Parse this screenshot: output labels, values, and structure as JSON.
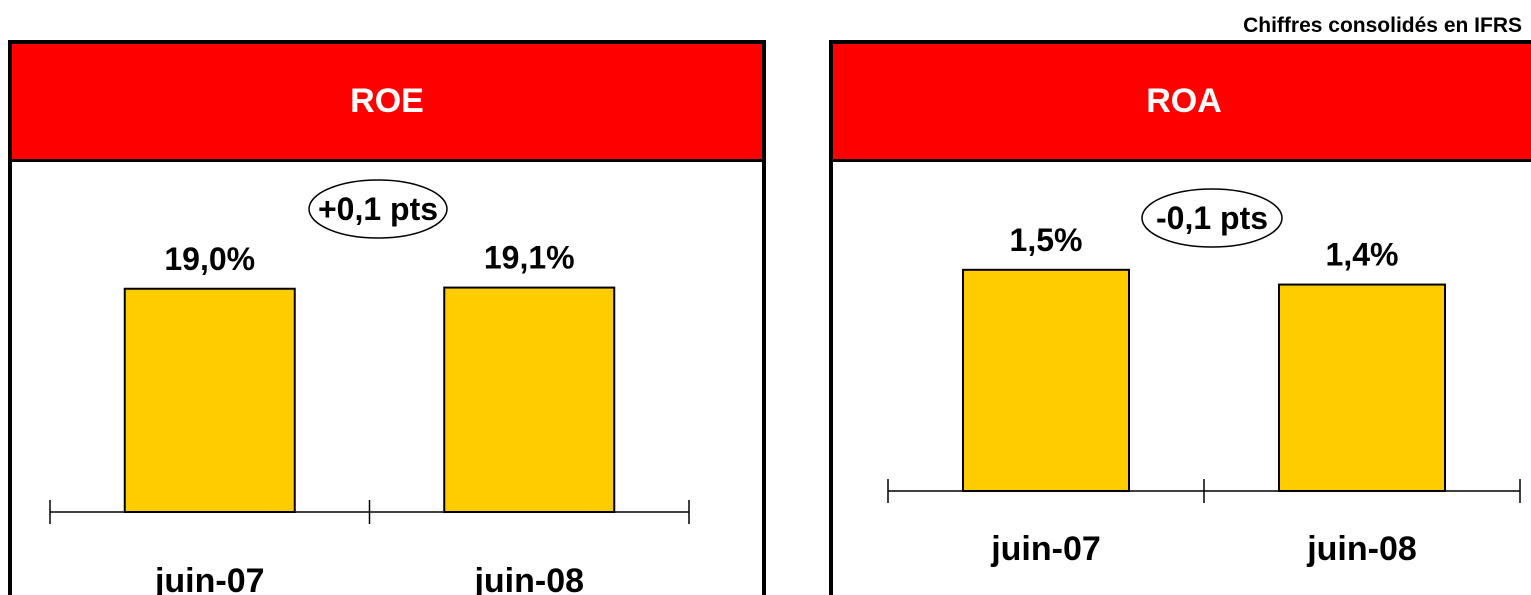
{
  "note": "Chiffres consolidés en IFRS",
  "colors": {
    "header_bg": "#ff0000",
    "header_text": "#ffffff",
    "bar_fill": "#ffcc00",
    "bar_stroke": "#000000"
  },
  "chart_data": [
    {
      "type": "bar",
      "title": "ROE",
      "categories": [
        "juin-07",
        "juin-08"
      ],
      "values": [
        19.0,
        19.1
      ],
      "value_labels": [
        "19,0%",
        "19,1%"
      ],
      "unit": "%",
      "annotation": "+0,1 pts",
      "ylim": [
        0,
        24
      ],
      "grid": false,
      "legend": "none"
    },
    {
      "type": "bar",
      "title": "ROA",
      "categories": [
        "juin-07",
        "juin-08"
      ],
      "values": [
        1.5,
        1.4
      ],
      "value_labels": [
        "1,5%",
        "1,4%"
      ],
      "unit": "%",
      "annotation": "-0,1 pts",
      "ylim": [
        0,
        1.77
      ],
      "grid": false,
      "legend": "none"
    }
  ]
}
